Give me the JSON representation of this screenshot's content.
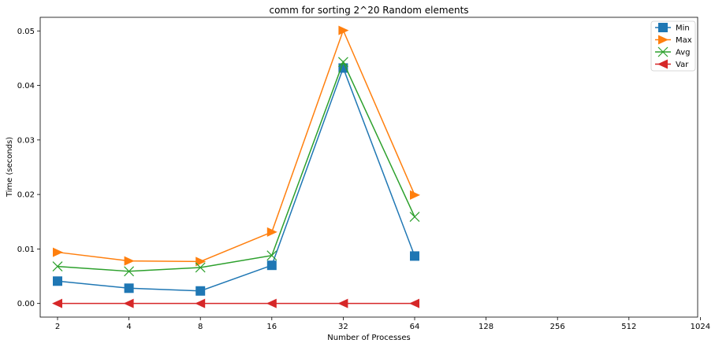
{
  "chart_data": {
    "type": "line",
    "title": "comm for sorting 2^20 Random elements",
    "xlabel": "Number of Processes",
    "ylabel": "Time (seconds)",
    "x_ticks": [
      "2",
      "4",
      "8",
      "16",
      "32",
      "64",
      "128",
      "256",
      "512",
      "1024"
    ],
    "x_scale": "log2",
    "y_ticks": [
      "0.00",
      "0.01",
      "0.02",
      "0.03",
      "0.04",
      "0.05"
    ],
    "ylim": [
      -0.0025,
      0.0525
    ],
    "grid": false,
    "legend_position": "top-right",
    "x": [
      2,
      4,
      8,
      16,
      32,
      64
    ],
    "series": [
      {
        "name": "Min",
        "color": "#1f77b4",
        "marker": "square",
        "values": [
          0.0041,
          0.0028,
          0.0023,
          0.007,
          0.0432,
          0.0087
        ]
      },
      {
        "name": "Max",
        "color": "#ff7f0e",
        "marker": "triangle-right",
        "values": [
          0.0094,
          0.0078,
          0.0077,
          0.0131,
          0.0501,
          0.0199
        ]
      },
      {
        "name": "Avg",
        "color": "#2ca02c",
        "marker": "x",
        "values": [
          0.0068,
          0.0059,
          0.0066,
          0.0088,
          0.0443,
          0.0159
        ]
      },
      {
        "name": "Var",
        "color": "#d62728",
        "marker": "triangle-left",
        "values": [
          0.0,
          0.0,
          0.0,
          0.0,
          0.0,
          0.0
        ]
      }
    ]
  }
}
